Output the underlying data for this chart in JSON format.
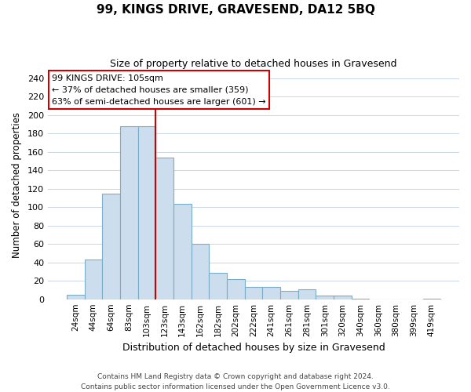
{
  "title": "99, KINGS DRIVE, GRAVESEND, DA12 5BQ",
  "subtitle": "Size of property relative to detached houses in Gravesend",
  "xlabel": "Distribution of detached houses by size in Gravesend",
  "ylabel": "Number of detached properties",
  "bar_labels": [
    "24sqm",
    "44sqm",
    "64sqm",
    "83sqm",
    "103sqm",
    "123sqm",
    "143sqm",
    "162sqm",
    "182sqm",
    "202sqm",
    "222sqm",
    "241sqm",
    "261sqm",
    "281sqm",
    "301sqm",
    "320sqm",
    "340sqm",
    "360sqm",
    "380sqm",
    "399sqm",
    "419sqm"
  ],
  "bar_values": [
    5,
    43,
    115,
    188,
    188,
    154,
    104,
    60,
    29,
    22,
    13,
    13,
    9,
    11,
    4,
    4,
    1,
    0,
    0,
    0,
    1
  ],
  "bar_color": "#ccdded",
  "bar_edge_color": "#7aaec8",
  "vline_index": 4,
  "vline_color": "#cc0000",
  "annotation_text": "99 KINGS DRIVE: 105sqm\n← 37% of detached houses are smaller (359)\n63% of semi-detached houses are larger (601) →",
  "annotation_box_color": "#ffffff",
  "annotation_box_edge": "#cc0000",
  "ylim": [
    0,
    248
  ],
  "yticks": [
    0,
    20,
    40,
    60,
    80,
    100,
    120,
    140,
    160,
    180,
    200,
    220,
    240
  ],
  "footer_line1": "Contains HM Land Registry data © Crown copyright and database right 2024.",
  "footer_line2": "Contains public sector information licensed under the Open Government Licence v3.0.",
  "background_color": "#ffffff",
  "grid_color": "#c8d4e8"
}
